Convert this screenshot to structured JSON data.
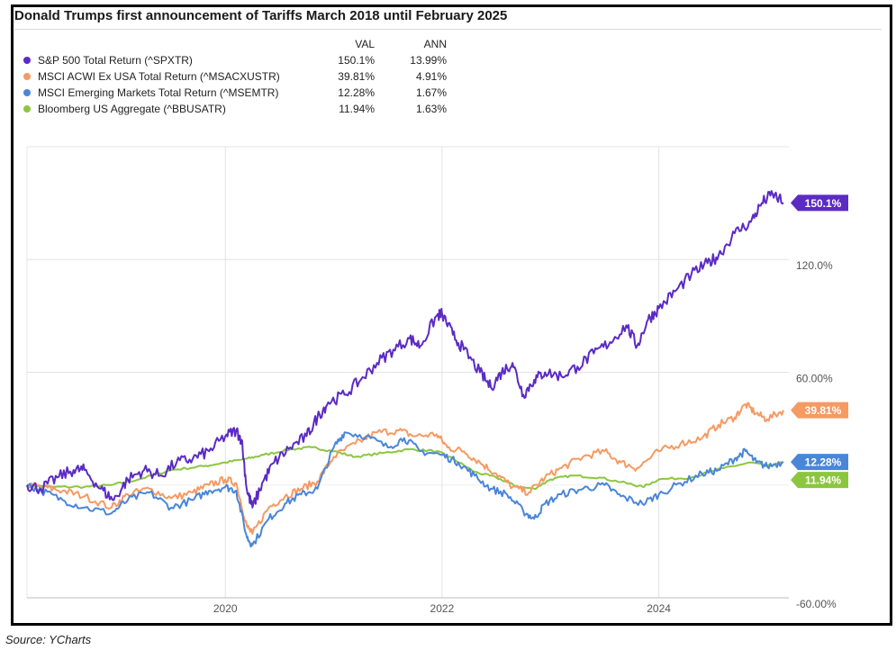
{
  "source": "Source: YCharts",
  "legend": {
    "val_header": "VAL",
    "ann_header": "ANN"
  },
  "chart_data": {
    "type": "line",
    "title": "Donald Trumps first announcement of Tariffs March 2018 until February 2025",
    "x_ticks": [
      "2020",
      "2022",
      "2024"
    ],
    "x_tick_values": [
      2020.0,
      2022.0,
      2024.0
    ],
    "x_range": [
      2018.17,
      2025.2
    ],
    "y_ticks": [
      {
        "value": 120,
        "label": "120.0%"
      },
      {
        "value": 60,
        "label": "60.00%"
      },
      {
        "value": -60,
        "label": "-60.00%"
      }
    ],
    "ylim": [
      -60,
      180
    ],
    "grid": true,
    "legend_position": "top-left",
    "series": [
      {
        "name": "S&P 500 Total Return (^SPXTR)",
        "val": "150.1%",
        "ann": "13.99%",
        "end_label": "150.1%",
        "color": "#5b2bc4",
        "points": [
          [
            2018.17,
            0
          ],
          [
            2018.3,
            -2
          ],
          [
            2018.45,
            4
          ],
          [
            2018.6,
            8
          ],
          [
            2018.7,
            8
          ],
          [
            2018.85,
            -2
          ],
          [
            2018.97,
            -8
          ],
          [
            2019.1,
            3
          ],
          [
            2019.25,
            8
          ],
          [
            2019.4,
            5
          ],
          [
            2019.55,
            12
          ],
          [
            2019.7,
            14
          ],
          [
            2019.85,
            18
          ],
          [
            2020.0,
            26
          ],
          [
            2020.1,
            29
          ],
          [
            2020.15,
            24
          ],
          [
            2020.2,
            -3
          ],
          [
            2020.25,
            -12
          ],
          [
            2020.35,
            2
          ],
          [
            2020.45,
            12
          ],
          [
            2020.6,
            20
          ],
          [
            2020.75,
            26
          ],
          [
            2020.85,
            36
          ],
          [
            2020.95,
            44
          ],
          [
            2021.1,
            48
          ],
          [
            2021.25,
            56
          ],
          [
            2021.4,
            65
          ],
          [
            2021.55,
            72
          ],
          [
            2021.7,
            78
          ],
          [
            2021.8,
            74
          ],
          [
            2021.95,
            90
          ],
          [
            2022.0,
            91
          ],
          [
            2022.1,
            80
          ],
          [
            2022.2,
            72
          ],
          [
            2022.35,
            60
          ],
          [
            2022.45,
            52
          ],
          [
            2022.55,
            60
          ],
          [
            2022.65,
            65
          ],
          [
            2022.75,
            48
          ],
          [
            2022.85,
            56
          ],
          [
            2022.95,
            60
          ],
          [
            2023.1,
            58
          ],
          [
            2023.25,
            63
          ],
          [
            2023.4,
            70
          ],
          [
            2023.55,
            76
          ],
          [
            2023.7,
            85
          ],
          [
            2023.8,
            74
          ],
          [
            2023.9,
            88
          ],
          [
            2024.0,
            94
          ],
          [
            2024.15,
            103
          ],
          [
            2024.3,
            112
          ],
          [
            2024.45,
            118
          ],
          [
            2024.55,
            122
          ],
          [
            2024.7,
            134
          ],
          [
            2024.85,
            140
          ],
          [
            2024.95,
            150
          ],
          [
            2025.05,
            155
          ],
          [
            2025.15,
            150.1
          ]
        ]
      },
      {
        "name": "MSCI ACWI Ex USA Total Return (^MSACXUSTR)",
        "val": "39.81%",
        "ann": "4.91%",
        "end_label": "39.81%",
        "color": "#f59a63",
        "points": [
          [
            2018.17,
            0
          ],
          [
            2018.3,
            -1
          ],
          [
            2018.5,
            -3
          ],
          [
            2018.7,
            -6
          ],
          [
            2018.95,
            -12
          ],
          [
            2019.1,
            -5
          ],
          [
            2019.3,
            -2
          ],
          [
            2019.5,
            -7
          ],
          [
            2019.7,
            -4
          ],
          [
            2019.85,
            0
          ],
          [
            2020.0,
            3
          ],
          [
            2020.1,
            1
          ],
          [
            2020.2,
            -22
          ],
          [
            2020.25,
            -26
          ],
          [
            2020.4,
            -12
          ],
          [
            2020.55,
            -6
          ],
          [
            2020.7,
            -2
          ],
          [
            2020.85,
            2
          ],
          [
            2021.0,
            15
          ],
          [
            2021.2,
            22
          ],
          [
            2021.4,
            28
          ],
          [
            2021.6,
            29
          ],
          [
            2021.75,
            26
          ],
          [
            2021.95,
            27
          ],
          [
            2022.05,
            20
          ],
          [
            2022.2,
            18
          ],
          [
            2022.35,
            12
          ],
          [
            2022.5,
            6
          ],
          [
            2022.65,
            -1
          ],
          [
            2022.8,
            -4
          ],
          [
            2022.95,
            4
          ],
          [
            2023.1,
            9
          ],
          [
            2023.3,
            15
          ],
          [
            2023.5,
            18
          ],
          [
            2023.65,
            12
          ],
          [
            2023.8,
            9
          ],
          [
            2024.0,
            18
          ],
          [
            2024.2,
            22
          ],
          [
            2024.4,
            25
          ],
          [
            2024.55,
            32
          ],
          [
            2024.7,
            36
          ],
          [
            2024.8,
            43
          ],
          [
            2024.9,
            38
          ],
          [
            2025.0,
            35
          ],
          [
            2025.15,
            39.81
          ]
        ]
      },
      {
        "name": "MSCI Emerging Markets Total Return (^MSEMTR)",
        "val": "12.28%",
        "ann": "1.67%",
        "end_label": "12.28%",
        "color": "#4a86d8",
        "points": [
          [
            2018.17,
            0
          ],
          [
            2018.3,
            -3
          ],
          [
            2018.5,
            -8
          ],
          [
            2018.7,
            -12
          ],
          [
            2018.95,
            -15
          ],
          [
            2019.1,
            -8
          ],
          [
            2019.3,
            -4
          ],
          [
            2019.5,
            -12
          ],
          [
            2019.7,
            -8
          ],
          [
            2019.85,
            -3
          ],
          [
            2020.0,
            -1
          ],
          [
            2020.1,
            -3
          ],
          [
            2020.2,
            -28
          ],
          [
            2020.25,
            -32
          ],
          [
            2020.4,
            -18
          ],
          [
            2020.55,
            -10
          ],
          [
            2020.7,
            -5
          ],
          [
            2020.85,
            -2
          ],
          [
            2021.0,
            20
          ],
          [
            2021.1,
            28
          ],
          [
            2021.3,
            26
          ],
          [
            2021.5,
            20
          ],
          [
            2021.65,
            25
          ],
          [
            2021.8,
            18
          ],
          [
            2022.0,
            16
          ],
          [
            2022.15,
            12
          ],
          [
            2022.3,
            5
          ],
          [
            2022.45,
            -2
          ],
          [
            2022.6,
            -5
          ],
          [
            2022.75,
            -14
          ],
          [
            2022.85,
            -18
          ],
          [
            2022.95,
            -10
          ],
          [
            2023.1,
            -5
          ],
          [
            2023.3,
            -2
          ],
          [
            2023.5,
            0
          ],
          [
            2023.65,
            -6
          ],
          [
            2023.85,
            -10
          ],
          [
            2024.0,
            -5
          ],
          [
            2024.2,
            1
          ],
          [
            2024.4,
            6
          ],
          [
            2024.55,
            8
          ],
          [
            2024.7,
            14
          ],
          [
            2024.8,
            18
          ],
          [
            2024.9,
            12
          ],
          [
            2025.0,
            10
          ],
          [
            2025.15,
            12.28
          ]
        ]
      },
      {
        "name": "Bloomberg US Aggregate (^BBUSATR)",
        "val": "11.94%",
        "ann": "1.63%",
        "end_label": "11.94%",
        "color": "#8cc63f",
        "points": [
          [
            2018.17,
            0
          ],
          [
            2018.4,
            -1
          ],
          [
            2018.7,
            -1
          ],
          [
            2018.95,
            0
          ],
          [
            2019.2,
            3
          ],
          [
            2019.5,
            8
          ],
          [
            2019.8,
            10
          ],
          [
            2020.0,
            12
          ],
          [
            2020.2,
            14
          ],
          [
            2020.35,
            16
          ],
          [
            2020.6,
            19
          ],
          [
            2020.8,
            20
          ],
          [
            2021.0,
            18
          ],
          [
            2021.2,
            15
          ],
          [
            2021.45,
            17
          ],
          [
            2021.7,
            19
          ],
          [
            2021.95,
            18
          ],
          [
            2022.1,
            14
          ],
          [
            2022.3,
            7
          ],
          [
            2022.5,
            4
          ],
          [
            2022.7,
            -1
          ],
          [
            2022.85,
            -2
          ],
          [
            2023.0,
            3
          ],
          [
            2023.2,
            5
          ],
          [
            2023.45,
            4
          ],
          [
            2023.7,
            1
          ],
          [
            2023.85,
            -1
          ],
          [
            2024.0,
            3
          ],
          [
            2024.3,
            4
          ],
          [
            2024.6,
            9
          ],
          [
            2024.85,
            12
          ],
          [
            2025.0,
            10
          ],
          [
            2025.15,
            11.94
          ]
        ]
      }
    ]
  }
}
